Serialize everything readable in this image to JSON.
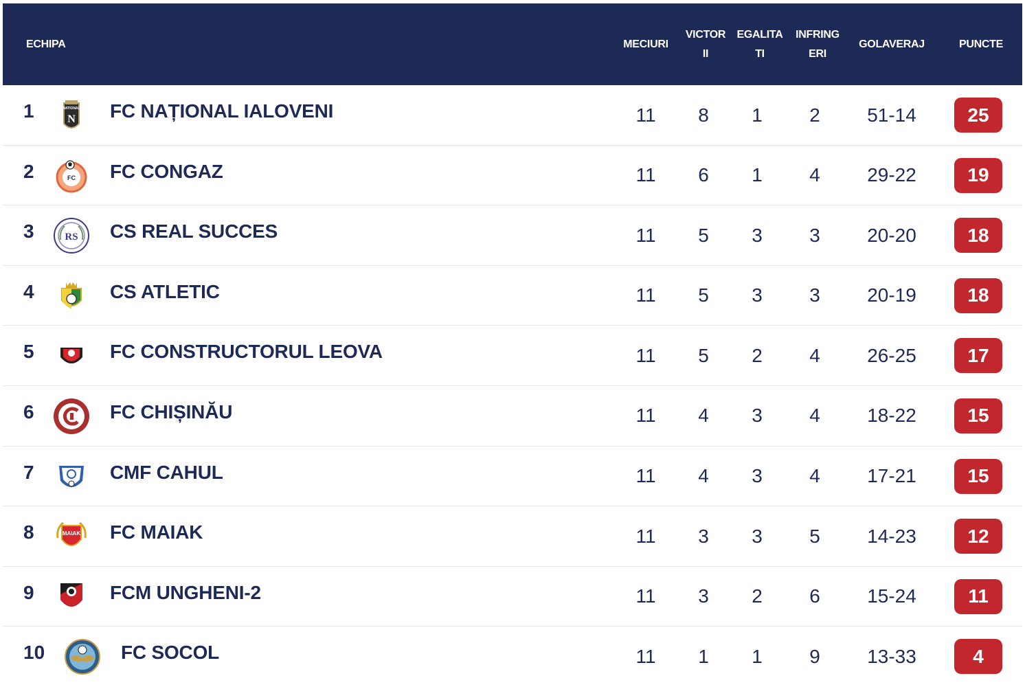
{
  "table": {
    "headers": {
      "team": "ECHIPA",
      "played": "MECIURI",
      "wins": [
        "VICTOR",
        "II"
      ],
      "draws": [
        "EGALITA",
        "TI"
      ],
      "losses": [
        "INFRING",
        "ERI"
      ],
      "goal_diff": "GOLAVERAJ",
      "points": "PUNCTE"
    },
    "rows": [
      {
        "pos": "1",
        "team": "FC NAȚIONAL IALOVENI",
        "played": "11",
        "wins": "8",
        "draws": "1",
        "losses": "2",
        "goals": "51-14",
        "points": "25",
        "crest": "nationala-crest-icon"
      },
      {
        "pos": "2",
        "team": "FC CONGAZ",
        "played": "11",
        "wins": "6",
        "draws": "1",
        "losses": "4",
        "goals": "29-22",
        "points": "19",
        "crest": "congaz-crest-icon"
      },
      {
        "pos": "3",
        "team": "CS REAL SUCCES",
        "played": "11",
        "wins": "5",
        "draws": "3",
        "losses": "3",
        "goals": "20-20",
        "points": "18",
        "crest": "real-succes-crest-icon"
      },
      {
        "pos": "4",
        "team": "CS ATLETIC",
        "played": "11",
        "wins": "5",
        "draws": "3",
        "losses": "3",
        "goals": "20-19",
        "points": "18",
        "crest": "atletic-crest-icon"
      },
      {
        "pos": "5",
        "team": "FC CONSTRUCTORUL LEOVA",
        "played": "11",
        "wins": "5",
        "draws": "2",
        "losses": "4",
        "goals": "26-25",
        "points": "17",
        "crest": "constructorul-crest-icon"
      },
      {
        "pos": "6",
        "team": "FC CHIȘINĂU",
        "played": "11",
        "wins": "4",
        "draws": "3",
        "losses": "4",
        "goals": "18-22",
        "points": "15",
        "crest": "chisinau-crest-icon"
      },
      {
        "pos": "7",
        "team": "CMF CAHUL",
        "played": "11",
        "wins": "4",
        "draws": "3",
        "losses": "4",
        "goals": "17-21",
        "points": "15",
        "crest": "cahul-crest-icon"
      },
      {
        "pos": "8",
        "team": "FC MAIAK",
        "played": "11",
        "wins": "3",
        "draws": "3",
        "losses": "5",
        "goals": "14-23",
        "points": "12",
        "crest": "maiak-crest-icon"
      },
      {
        "pos": "9",
        "team": "FCM UNGHENI-2",
        "played": "11",
        "wins": "3",
        "draws": "2",
        "losses": "6",
        "goals": "15-24",
        "points": "11",
        "crest": "ungheni-crest-icon"
      },
      {
        "pos": "10",
        "team": "FC SOCOL",
        "played": "11",
        "wins": "1",
        "draws": "1",
        "losses": "9",
        "goals": "13-33",
        "points": "4",
        "crest": "socol-crest-icon"
      }
    ]
  },
  "crest_text": {
    "nationala": "NATIONAL",
    "congaz": "FC",
    "real_succes": "RS",
    "maiak": "MAIAK"
  },
  "colors": {
    "header_bg": "#1e2a56",
    "text": "#1e2a56",
    "points_badge": "#c1272d",
    "row_divider": "#e3e5ea"
  }
}
